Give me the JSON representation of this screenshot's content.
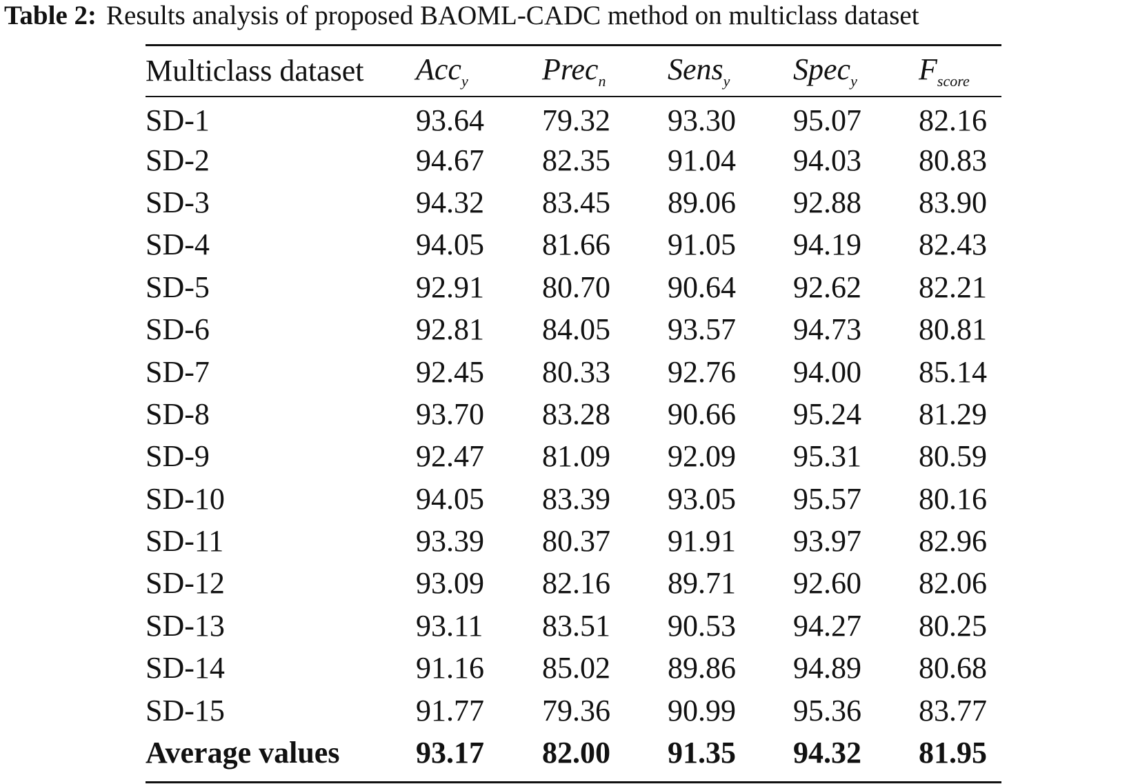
{
  "caption": {
    "label": "Table 2:",
    "text": "Results analysis of proposed BAOML-CADC method on multiclass dataset"
  },
  "table": {
    "headers": [
      {
        "main": "Multiclass dataset",
        "sub": ""
      },
      {
        "main": "Acc",
        "sub": "y"
      },
      {
        "main": "Prec",
        "sub": "n"
      },
      {
        "main": "Sens",
        "sub": "y"
      },
      {
        "main": "Spec",
        "sub": "y"
      },
      {
        "main": "F",
        "sub": "score"
      }
    ],
    "rows": [
      [
        "SD-1",
        "93.64",
        "79.32",
        "93.30",
        "95.07",
        "82.16"
      ],
      [
        "SD-2",
        "94.67",
        "82.35",
        "91.04",
        "94.03",
        "80.83"
      ],
      [
        "SD-3",
        "94.32",
        "83.45",
        "89.06",
        "92.88",
        "83.90"
      ],
      [
        "SD-4",
        "94.05",
        "81.66",
        "91.05",
        "94.19",
        "82.43"
      ],
      [
        "SD-5",
        "92.91",
        "80.70",
        "90.64",
        "92.62",
        "82.21"
      ],
      [
        "SD-6",
        "92.81",
        "84.05",
        "93.57",
        "94.73",
        "80.81"
      ],
      [
        "SD-7",
        "92.45",
        "80.33",
        "92.76",
        "94.00",
        "85.14"
      ],
      [
        "SD-8",
        "93.70",
        "83.28",
        "90.66",
        "95.24",
        "81.29"
      ],
      [
        "SD-9",
        "92.47",
        "81.09",
        "92.09",
        "95.31",
        "80.59"
      ],
      [
        "SD-10",
        "94.05",
        "83.39",
        "93.05",
        "95.57",
        "80.16"
      ],
      [
        "SD-11",
        "93.39",
        "80.37",
        "91.91",
        "93.97",
        "82.96"
      ],
      [
        "SD-12",
        "93.09",
        "82.16",
        "89.71",
        "92.60",
        "82.06"
      ],
      [
        "SD-13",
        "93.11",
        "83.51",
        "90.53",
        "94.27",
        "80.25"
      ],
      [
        "SD-14",
        "91.16",
        "85.02",
        "89.86",
        "94.89",
        "80.68"
      ],
      [
        "SD-15",
        "91.77",
        "79.36",
        "90.99",
        "95.36",
        "83.77"
      ]
    ],
    "average": [
      "Average values",
      "93.17",
      "82.00",
      "91.35",
      "94.32",
      "81.95"
    ]
  }
}
